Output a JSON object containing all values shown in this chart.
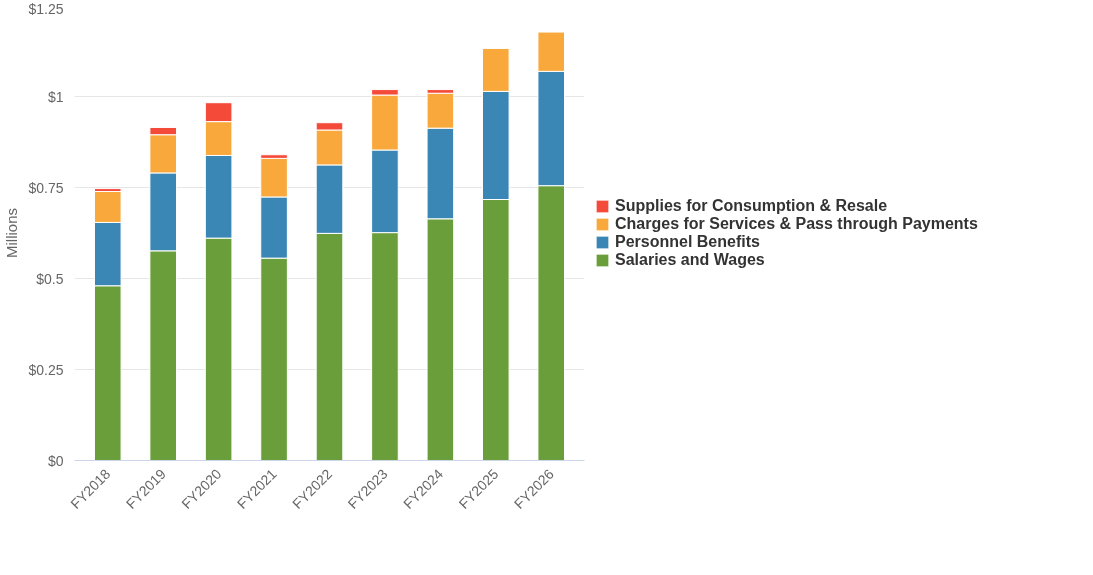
{
  "chart_data": {
    "type": "bar",
    "stacked": true,
    "ylabel": "Millions",
    "categories": [
      "FY2018",
      "FY2019",
      "FY2020",
      "FY2021",
      "FY2022",
      "FY2023",
      "FY2024",
      "FY2025",
      "FY2026"
    ],
    "series": [
      {
        "name": "Salaries and Wages",
        "color": "#6a9e3a",
        "values": [
          0.48,
          0.576,
          0.611,
          0.556,
          0.624,
          0.626,
          0.664,
          0.717,
          0.755
        ]
      },
      {
        "name": "Personnel Benefits",
        "color": "#3a87b5",
        "values": [
          0.174,
          0.214,
          0.227,
          0.168,
          0.188,
          0.227,
          0.249,
          0.297,
          0.314
        ]
      },
      {
        "name": "Charges for Services & Pass through Payments",
        "color": "#f9a93b",
        "values": [
          0.085,
          0.105,
          0.093,
          0.106,
          0.096,
          0.151,
          0.096,
          0.118,
          0.108
        ]
      },
      {
        "name": "Supplies for Consumption & Resale",
        "color": "#f44a3a",
        "values": [
          0.008,
          0.02,
          0.052,
          0.01,
          0.02,
          0.015,
          0.01,
          null,
          null
        ]
      }
    ],
    "ylim": [
      0,
      1.25
    ],
    "yticks": [
      {
        "value": 0,
        "label": "$0"
      },
      {
        "value": 0.25,
        "label": "$0.25"
      },
      {
        "value": 0.5,
        "label": "$0.5"
      },
      {
        "value": 0.75,
        "label": "$0.75"
      },
      {
        "value": 1,
        "label": "$1"
      },
      {
        "value": 1.25,
        "label": "$1.25"
      }
    ],
    "grid": "y",
    "legend": "right"
  }
}
